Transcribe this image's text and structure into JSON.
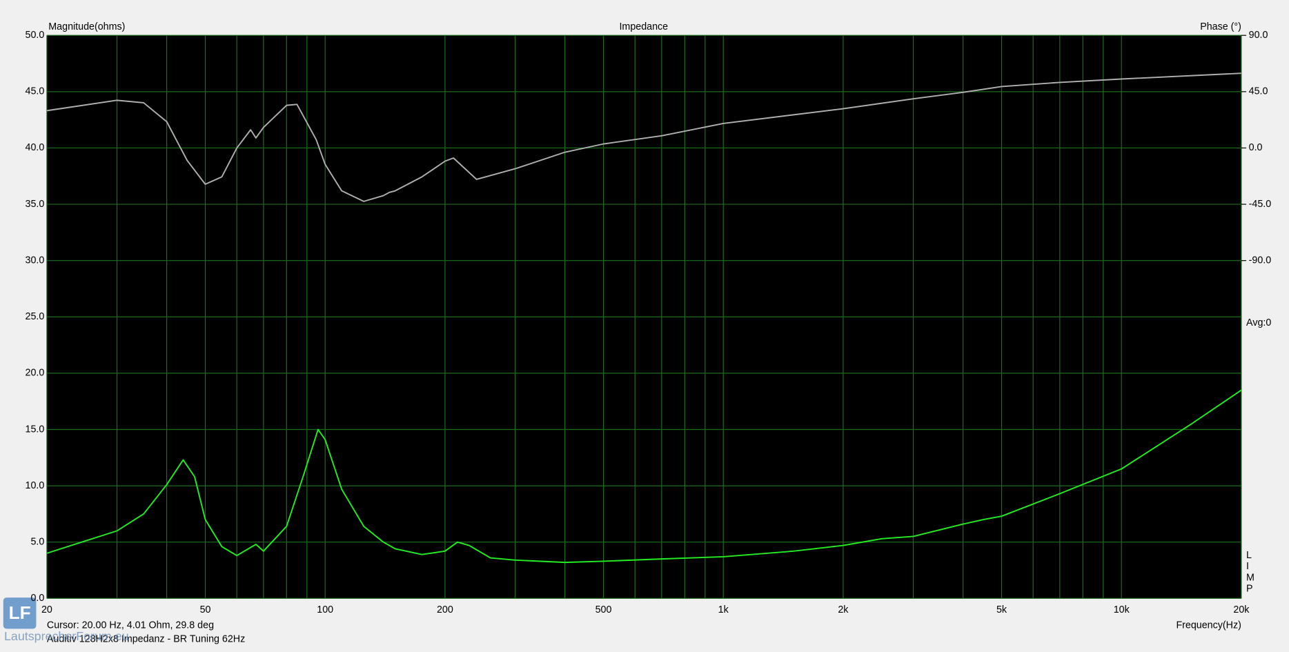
{
  "chart_data": {
    "type": "line",
    "title": "Impedance",
    "y_label": "Magnitude(ohms)",
    "y2_label": "Phase (°)",
    "x_label": "Frequency(Hz)",
    "log_x": true,
    "grid": true,
    "xlim": [
      20,
      20000
    ],
    "xticks": [
      20,
      50,
      100,
      200,
      500,
      {
        "value": 1000,
        "label": "1k"
      },
      {
        "value": 2000,
        "label": "2k"
      },
      {
        "value": 5000,
        "label": "5k"
      },
      {
        "value": 10000,
        "label": "10k"
      },
      {
        "value": 20000,
        "label": "20k"
      }
    ],
    "xminor": [
      30,
      40,
      60,
      70,
      80,
      90,
      300,
      400,
      600,
      700,
      800,
      900,
      3000,
      4000,
      6000,
      7000,
      8000,
      9000
    ],
    "ylim": [
      0,
      50
    ],
    "yticks": [
      {
        "value": 0,
        "label": "0.0"
      },
      {
        "value": 5,
        "label": "5.0"
      },
      {
        "value": 10,
        "label": "10.0"
      },
      {
        "value": 15,
        "label": "15.0"
      },
      {
        "value": 20,
        "label": "20.0"
      },
      {
        "value": 25,
        "label": "25.0"
      },
      {
        "value": 30,
        "label": "30.0"
      },
      {
        "value": 35,
        "label": "35.0"
      },
      {
        "value": 40,
        "label": "40.0"
      },
      {
        "value": 45,
        "label": "45.0"
      },
      {
        "value": 50,
        "label": "50.0"
      }
    ],
    "y2lim": [
      -360,
      90
    ],
    "y2ticks": [
      {
        "value": 90,
        "label": "90.0"
      },
      {
        "value": 45,
        "label": "45.0"
      },
      {
        "value": 0,
        "label": "0.0"
      },
      {
        "value": -45,
        "label": "-45.0"
      },
      {
        "value": -90,
        "label": "-90.0"
      }
    ],
    "avg_label": "Avg:0",
    "side_letters": [
      "L",
      "I",
      "M",
      "P"
    ],
    "cursor": "Cursor: 20.00 Hz, 4.01 Ohm, 29.8 deg",
    "caption": "Auditiv 128H2x8 Impedanz - BR Tuning 62Hz",
    "watermark": "LautsprecherForum.eu",
    "logo": "LF",
    "series": [
      {
        "color": "#22ee22",
        "x": [
          20,
          30,
          35,
          40,
          44,
          47,
          50,
          55,
          60,
          67,
          70,
          80,
          88,
          96,
          100,
          110,
          125,
          140,
          150,
          175,
          200,
          215,
          230,
          260,
          300,
          400,
          500,
          700,
          1000,
          1500,
          2000,
          2500,
          3000,
          4000,
          4500,
          5000,
          7000,
          10000,
          15000,
          20000
        ],
        "values": [
          4.01,
          6.0,
          7.5,
          10.1,
          12.3,
          10.8,
          7.0,
          4.6,
          3.8,
          4.8,
          4.2,
          6.4,
          10.8,
          15.0,
          14.1,
          9.7,
          6.4,
          5.0,
          4.4,
          3.9,
          4.2,
          5.0,
          4.7,
          3.6,
          3.4,
          3.2,
          3.3,
          3.5,
          3.7,
          4.2,
          4.7,
          5.3,
          5.5,
          6.6,
          7.0,
          7.3,
          9.3,
          11.5,
          15.5,
          18.5
        ]
      },
      {
        "color": "#b0b0b0",
        "axis": "y2",
        "x": [
          20,
          30,
          35,
          40,
          45,
          50,
          55,
          60,
          65,
          67,
          70,
          80,
          85,
          95,
          100,
          110,
          125,
          140,
          145,
          150,
          175,
          200,
          210,
          240,
          300,
          400,
          500,
          700,
          1000,
          2000,
          3000,
          4000,
          5000,
          7000,
          10000,
          20000
        ],
        "values": [
          29.8,
          38.1,
          36.1,
          21.0,
          -9.9,
          -29.0,
          -23.1,
          0.0,
          14.5,
          8.0,
          16.4,
          34.1,
          34.8,
          6.6,
          -13.1,
          -34.2,
          -42.7,
          -38.1,
          -35.5,
          -34.2,
          -23.1,
          -10.6,
          -8.0,
          -25.1,
          -16.6,
          -3.4,
          3.2,
          9.7,
          19.6,
          31.4,
          39.3,
          44.5,
          49.1,
          52.4,
          55.1,
          59.7
        ]
      }
    ]
  }
}
